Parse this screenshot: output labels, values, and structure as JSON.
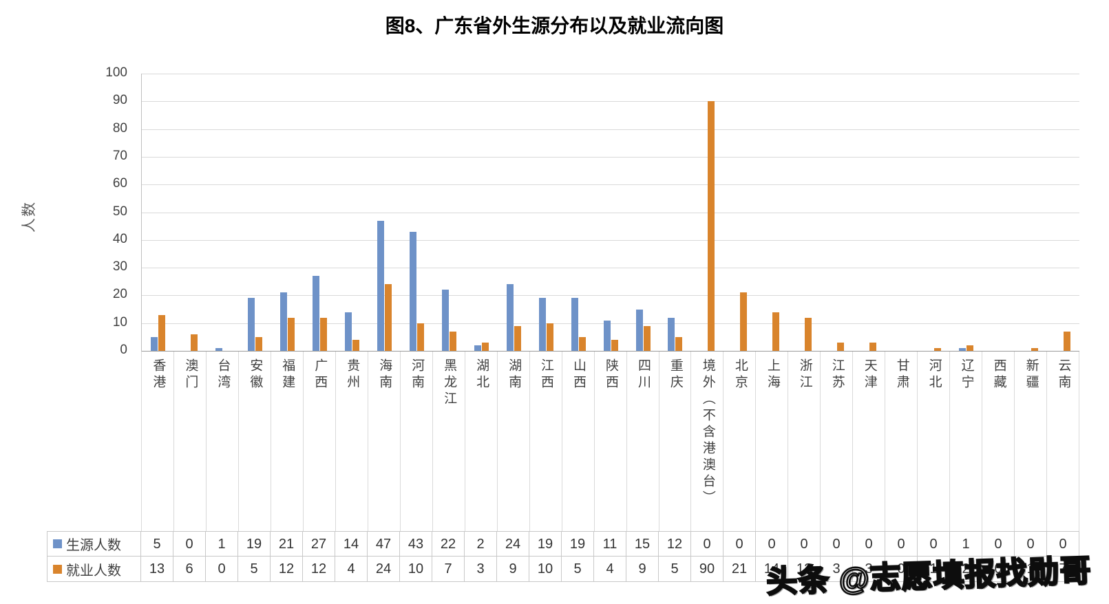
{
  "page": {
    "title": "图8、广东省外生源分布以及就业流向图",
    "watermark": "头条 @志愿填报找勋哥"
  },
  "chart_data": {
    "type": "bar",
    "title": "图8、广东省外生源分布以及就业流向图",
    "ylabel": "人数",
    "xlabel": "",
    "ylim": [
      0,
      100
    ],
    "ytick_step": 10,
    "grid": true,
    "legend_position": "data-table-left",
    "has_data_table": true,
    "categories": [
      "香港",
      "澳门",
      "台湾",
      "安徽",
      "福建",
      "广西",
      "贵州",
      "海南",
      "河南",
      "黑龙江",
      "湖北",
      "湖南",
      "江西",
      "山西",
      "陕西",
      "四川",
      "重庆",
      "境外（不含港澳台）",
      "北京",
      "上海",
      "浙江",
      "江苏",
      "天津",
      "甘肃",
      "河北",
      "辽宁",
      "西藏",
      "新疆",
      "云南"
    ],
    "series": [
      {
        "name": "生源人数",
        "color": "#6E92C8",
        "values": [
          5,
          0,
          1,
          19,
          21,
          27,
          14,
          47,
          43,
          22,
          2,
          24,
          19,
          19,
          11,
          15,
          12,
          0,
          0,
          0,
          0,
          0,
          0,
          0,
          0,
          1,
          0,
          0,
          0
        ]
      },
      {
        "name": "就业人数",
        "color": "#D9842C",
        "values": [
          13,
          6,
          0,
          5,
          12,
          12,
          4,
          24,
          10,
          7,
          3,
          9,
          10,
          5,
          4,
          9,
          5,
          90,
          21,
          14,
          12,
          3,
          3,
          0,
          1,
          2,
          0,
          1,
          7
        ]
      }
    ]
  },
  "colors": {
    "gridline": "#d9d9d9",
    "axis": "#9a9a9a",
    "tick_text": "#404040"
  }
}
